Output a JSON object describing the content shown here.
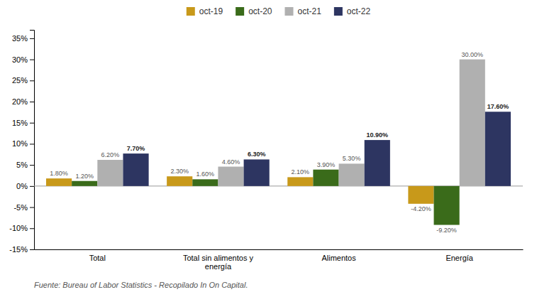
{
  "chart_data": {
    "type": "bar",
    "categories": [
      "Total",
      "Total sin alimentos y\nenergía",
      "Alimentos",
      "Energía"
    ],
    "series": [
      {
        "name": "oct-19",
        "color": "#C8991A",
        "values": [
          1.8,
          2.3,
          2.1,
          -4.2
        ],
        "value_labels": [
          "1.80%",
          "2.30%",
          "2.10%",
          "-4.20%"
        ]
      },
      {
        "name": "oct-20",
        "color": "#3A6B1A",
        "values": [
          1.2,
          1.6,
          3.9,
          -9.2
        ],
        "value_labels": [
          "1.20%",
          "1.60%",
          "3.90%",
          "-9.20%"
        ]
      },
      {
        "name": "oct-21",
        "color": "#B0B0B0",
        "values": [
          6.2,
          4.6,
          5.3,
          30.0
        ],
        "value_labels": [
          "6.20%",
          "4.60%",
          "5.30%",
          "30.00%"
        ]
      },
      {
        "name": "oct-22",
        "color": "#2D3561",
        "values": [
          7.7,
          6.3,
          10.9,
          17.6
        ],
        "value_labels": [
          "7.70%",
          "6.30%",
          "10.90%",
          "17.60%"
        ]
      }
    ],
    "ylim": [
      -15,
      37
    ],
    "yticks": [
      {
        "value": -15,
        "label": "-15%"
      },
      {
        "value": -10,
        "label": "-10%"
      },
      {
        "value": -5,
        "label": "-5%"
      },
      {
        "value": 0,
        "label": "0%"
      },
      {
        "value": 5,
        "label": "5%"
      },
      {
        "value": 10,
        "label": "10%"
      },
      {
        "value": 15,
        "label": "15%"
      },
      {
        "value": 20,
        "label": "20%"
      },
      {
        "value": 25,
        "label": "25%"
      },
      {
        "value": 30,
        "label": "30%"
      },
      {
        "value": 35,
        "label": "35%"
      }
    ],
    "grid": false,
    "legend": "top",
    "data_labels": true,
    "annotations": [
      "Fuente: Bureau of Labor Statistics - Recopilado In On Capital."
    ]
  }
}
